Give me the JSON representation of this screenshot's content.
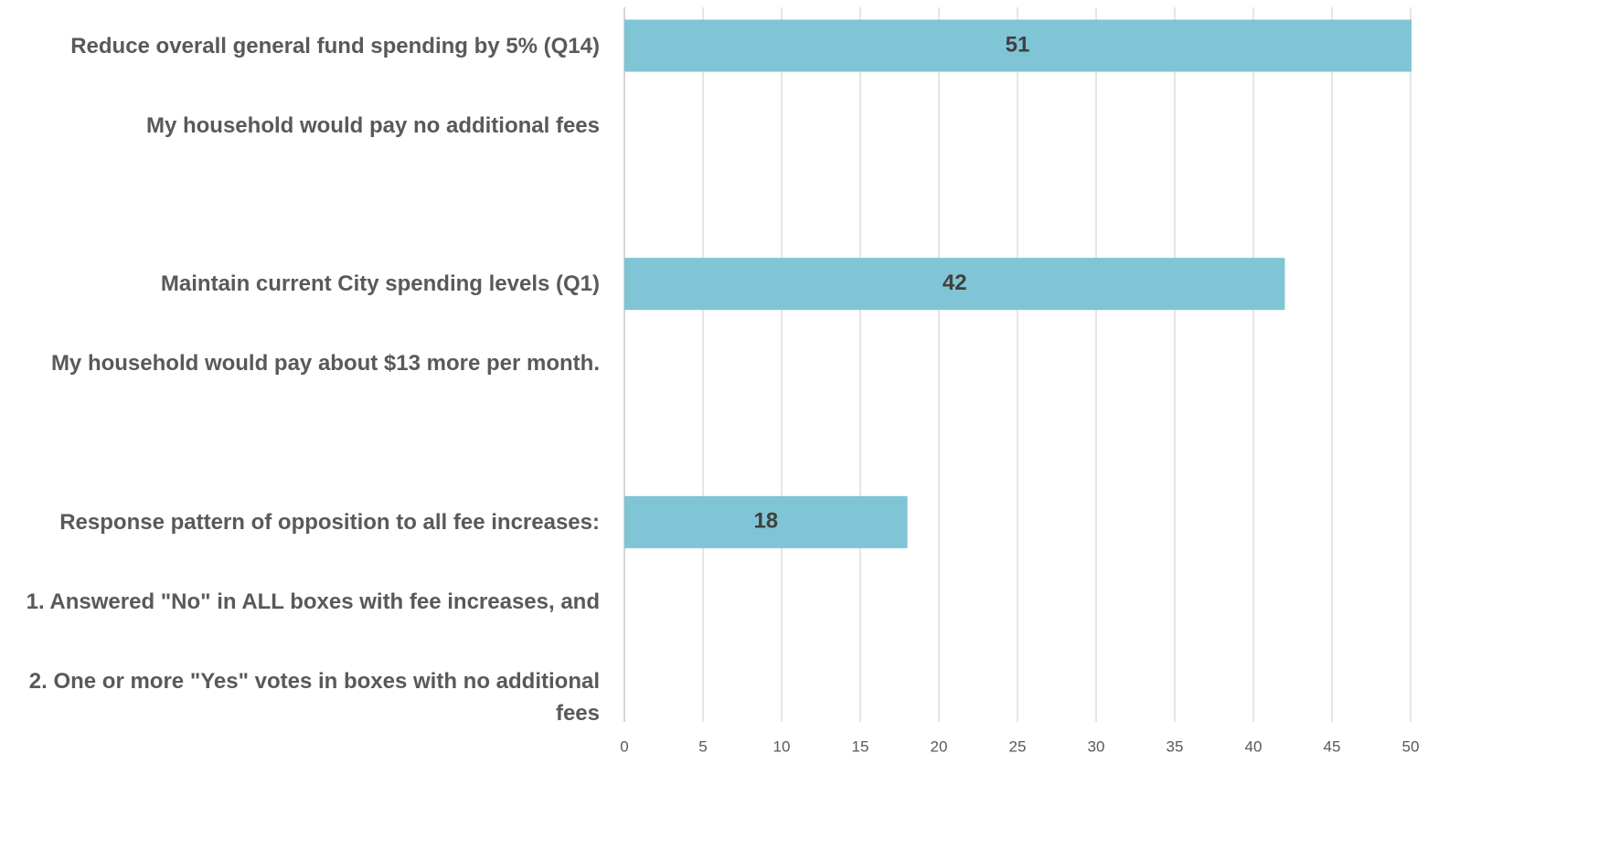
{
  "chart_data": {
    "type": "barh",
    "categories": [
      [
        "Reduce overall general fund spending by 5% (Q14)",
        "My household would pay no additional fees"
      ],
      [
        "Maintain current City spending levels (Q1)",
        "My household would pay about $13 more per month."
      ],
      [
        "Response pattern of opposition to all fee increases:",
        "1. Answered \"No\" in ALL boxes with fee increases, and",
        "2. One or more \"Yes\" votes in boxes with no additional fees"
      ]
    ],
    "values": [
      51,
      42,
      18
    ],
    "color": "#80c5d6",
    "xlim": [
      0,
      50
    ],
    "xticks": [
      0,
      5,
      10,
      15,
      20,
      25,
      30,
      35,
      40,
      45,
      50
    ],
    "grid": true
  }
}
